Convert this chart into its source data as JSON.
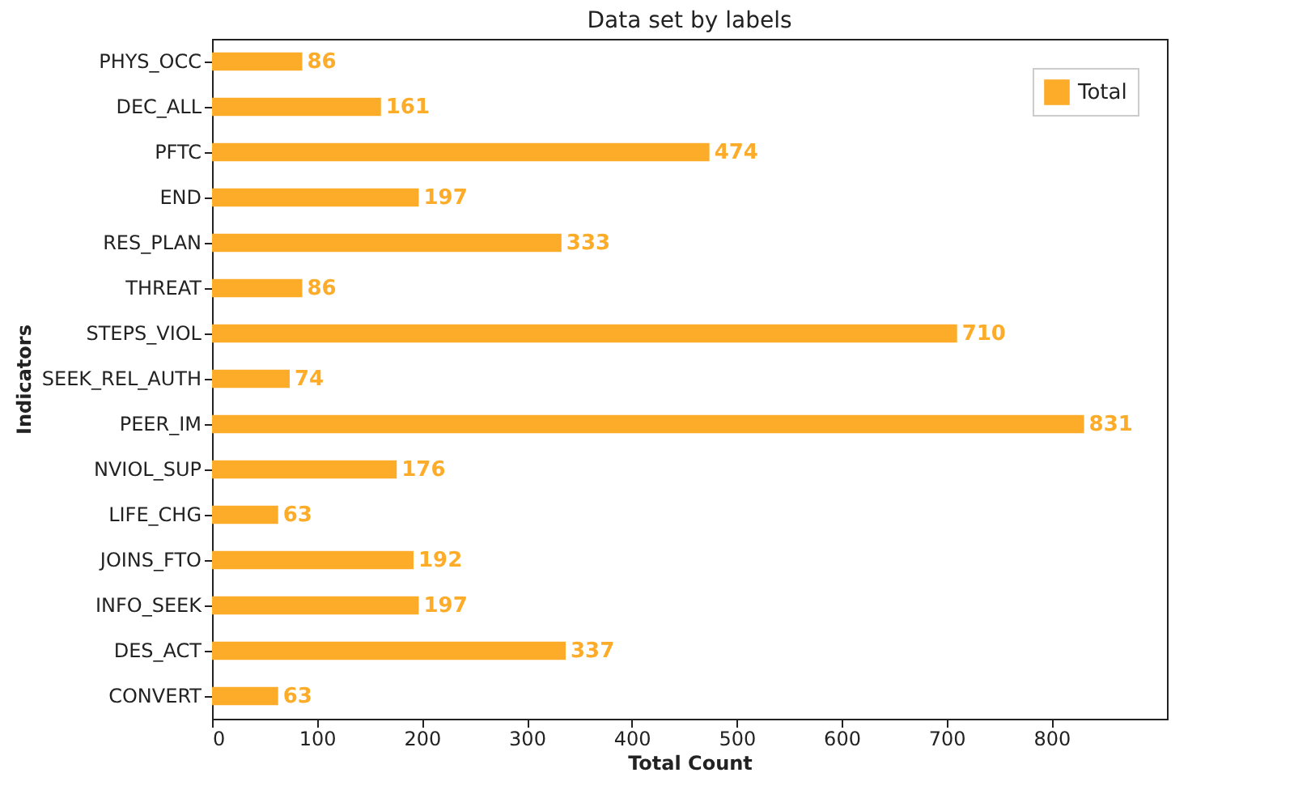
{
  "chart_data": {
    "type": "bar",
    "orientation": "horizontal",
    "title": "Data set by labels",
    "xlabel": "Total Count",
    "ylabel": "Indicators",
    "categories": [
      "PHYS_OCC",
      "DEC_ALL",
      "PFTC",
      "END",
      "RES_PLAN",
      "THREAT",
      "STEPS_VIOL",
      "SEEK_REL_AUTH",
      "PEER_IM",
      "NVIOL_SUP",
      "LIFE_CHG",
      "JOINS_FTO",
      "INFO_SEEK",
      "DES_ACT",
      "CONVERT"
    ],
    "series": [
      {
        "name": "Total",
        "color": "#fdac2a",
        "values": [
          86,
          161,
          474,
          197,
          333,
          86,
          710,
          74,
          831,
          176,
          63,
          192,
          197,
          337,
          63
        ]
      }
    ],
    "xlim": [
      0,
      910
    ],
    "xticks": [
      0,
      100,
      200,
      300,
      400,
      500,
      600,
      700,
      800
    ],
    "data_labels": true,
    "legend": "top right",
    "grid": false
  }
}
